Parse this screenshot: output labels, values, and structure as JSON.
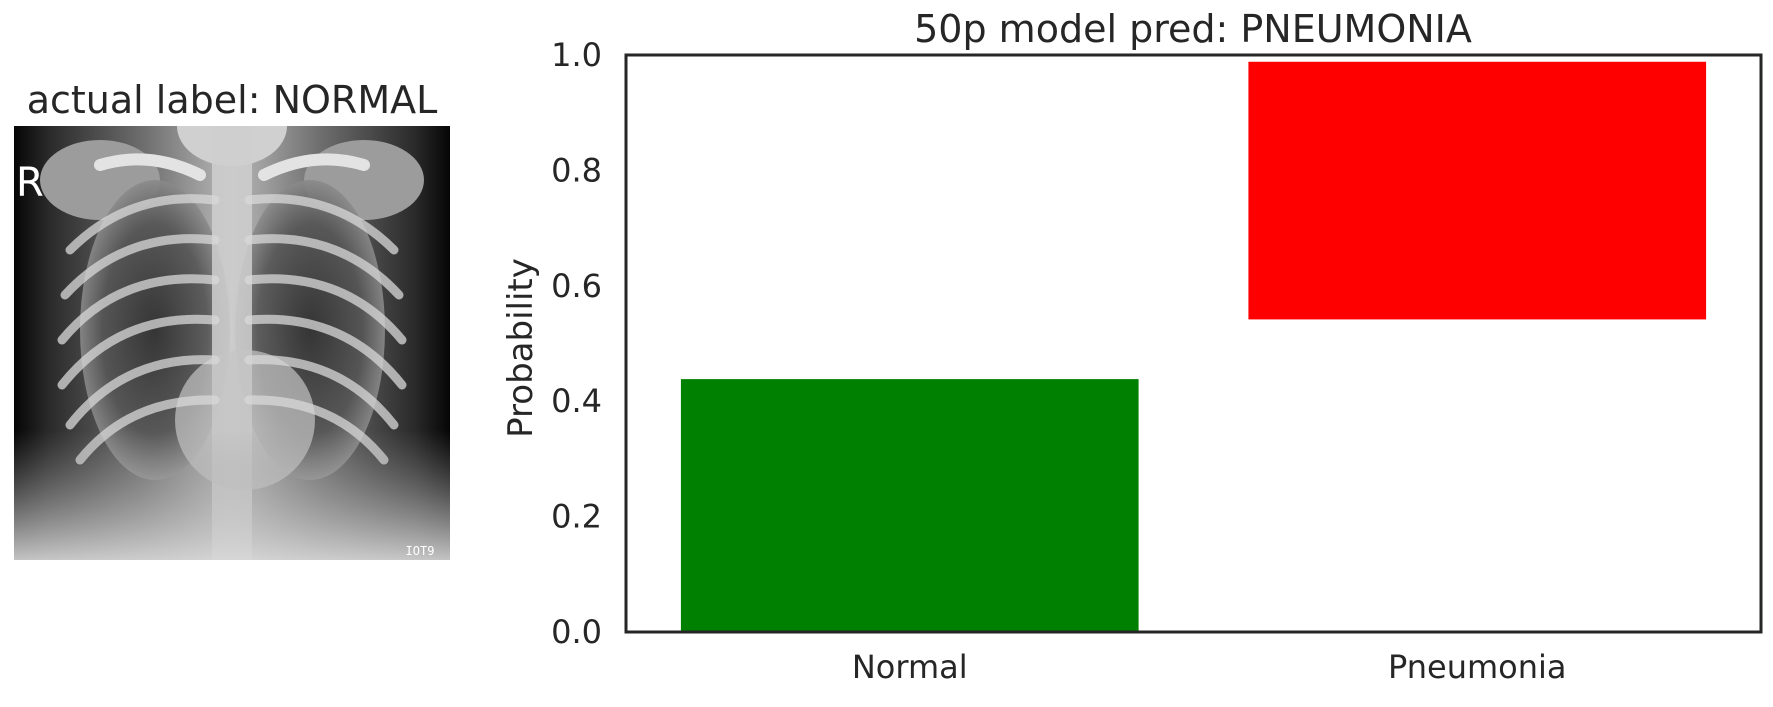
{
  "image_panel": {
    "title": "actual label: NORMAL",
    "image_content": "chest-xray",
    "marker_letter": "R",
    "corner_stamp": "IOT9"
  },
  "chart_data": {
    "type": "bar",
    "title": "50p model pred: PNEUMONIA",
    "xlabel": "",
    "ylabel": "Probability",
    "categories": [
      "Normal",
      "Pneumonia"
    ],
    "values": [
      0.44,
      0.45
    ],
    "bottoms": [
      0.0,
      0.54
    ],
    "ylim": [
      0,
      1.0
    ],
    "yticks": [
      0.0,
      0.2,
      0.4,
      0.6,
      0.8,
      1.0
    ],
    "ytick_labels": [
      "0.0",
      "0.2",
      "0.4",
      "0.6",
      "0.8",
      "1.0"
    ],
    "colors": [
      "#008000",
      "#ff0000"
    ],
    "grid": false,
    "legend": "none"
  }
}
